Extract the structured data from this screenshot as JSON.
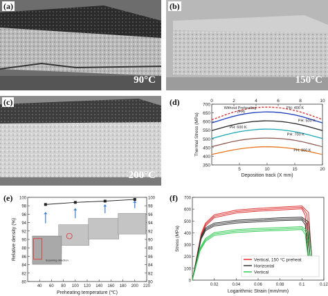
{
  "panels": {
    "a": {
      "label": "(a)",
      "temperature": "90°C"
    },
    "b": {
      "label": "(b)",
      "temperature": "150°C"
    },
    "c": {
      "label": "(c)",
      "temperature": "200°C"
    },
    "d": {
      "label": "(d)"
    },
    "e": {
      "label": "(e)"
    },
    "f": {
      "label": "(f)"
    }
  },
  "chart_data": [
    {
      "id": "d",
      "type": "line",
      "xlabel": "Deposition track (X mm)",
      "ylabel": "Thermal Stress (MPa)",
      "xlim": [
        0,
        20
      ],
      "ylim": [
        350,
        700
      ],
      "xticks": [
        5,
        10,
        15,
        20
      ],
      "yticks": [
        350,
        400,
        450,
        500,
        550,
        600,
        650,
        700
      ],
      "top_ticks": [
        0,
        2,
        4,
        6,
        8,
        10
      ],
      "series": [
        {
          "name": "Without Preheating (PH)",
          "color": "#d62728",
          "dashed": true,
          "x": [
            0,
            5,
            10,
            15,
            20
          ],
          "y": [
            610,
            668,
            688,
            668,
            612
          ]
        },
        {
          "name": "PH: 400 K",
          "color": "#1f3fbf",
          "dashed": false,
          "x": [
            0,
            5,
            10,
            15,
            20
          ],
          "y": [
            592,
            642,
            660,
            642,
            592
          ]
        },
        {
          "name": "PH: 500 K",
          "color": "#222222",
          "dashed": false,
          "x": [
            0,
            5,
            10,
            15,
            20
          ],
          "y": [
            548,
            592,
            608,
            592,
            548
          ]
        },
        {
          "name": "PH: 600 K",
          "color": "#1aa6b7",
          "dashed": false,
          "x": [
            0,
            5,
            10,
            15,
            20
          ],
          "y": [
            502,
            545,
            560,
            545,
            502
          ]
        },
        {
          "name": "PH: 700 K",
          "color": "#8c564b",
          "dashed": false,
          "x": [
            0,
            5,
            10,
            15,
            20
          ],
          "y": [
            455,
            495,
            508,
            495,
            455
          ]
        },
        {
          "name": "PH: 800 K",
          "color": "#e8731a",
          "dashed": false,
          "x": [
            0,
            5,
            10,
            15,
            20
          ],
          "y": [
            410,
            445,
            458,
            445,
            410
          ]
        }
      ],
      "annotations": [
        "Without Preheating",
        "(PH)",
        "PH: 400 K",
        "PH: 500 K",
        "PH: 600 K",
        "PH: 700 K",
        "PH: 800 K"
      ]
    },
    {
      "id": "e",
      "type": "scatter",
      "xlabel": "Preheating temperature (℃)",
      "ylabel": "Relative density (%)",
      "xlim": [
        20,
        220
      ],
      "ylim": [
        80,
        100
      ],
      "xticks": [
        40,
        60,
        80,
        100,
        120,
        140,
        160,
        180,
        200,
        220
      ],
      "yticks": [
        80,
        82,
        84,
        86,
        88,
        90,
        92,
        94,
        96,
        98,
        100
      ],
      "right_yticks": [
        80,
        82,
        84,
        86,
        88,
        90,
        92,
        94,
        96,
        98,
        100
      ],
      "x": [
        50,
        100,
        150,
        200
      ],
      "y": [
        98.3,
        98.8,
        99.1,
        99.5
      ],
      "inset_labels": [
        "Scanning direction"
      ]
    },
    {
      "id": "f",
      "type": "line",
      "xlabel": "Logarithmic Strain (mm/mm)",
      "ylabel": "Stress (MPa)",
      "xlim": [
        0,
        0.12
      ],
      "ylim": [
        0,
        700
      ],
      "xticks": [
        0.02,
        0.04,
        0.06,
        0.08,
        0.1,
        0.12
      ],
      "yticks": [
        0,
        100,
        200,
        300,
        400,
        500,
        600,
        700
      ],
      "series": [
        {
          "name": "Vertical, 150 °C preheat",
          "color": "#e03030",
          "x": [
            0,
            0.008,
            0.012,
            0.02,
            0.04,
            0.06,
            0.08,
            0.1,
            0.103,
            0.106
          ],
          "y": [
            0,
            380,
            470,
            540,
            580,
            595,
            605,
            615,
            560,
            170
          ]
        },
        {
          "name": "Horizontal",
          "color": "#333333",
          "x": [
            0,
            0.008,
            0.012,
            0.02,
            0.04,
            0.06,
            0.08,
            0.1,
            0.103,
            0.106
          ],
          "y": [
            0,
            360,
            430,
            470,
            495,
            505,
            515,
            520,
            480,
            190
          ]
        },
        {
          "name": "Vertical",
          "color": "#33cc55",
          "x": [
            0,
            0.007,
            0.012,
            0.02,
            0.04,
            0.06,
            0.08,
            0.1,
            0.103,
            0.106
          ],
          "y": [
            0,
            260,
            340,
            390,
            415,
            425,
            432,
            440,
            400,
            170
          ]
        }
      ],
      "legend_position": "bottom-right"
    }
  ]
}
